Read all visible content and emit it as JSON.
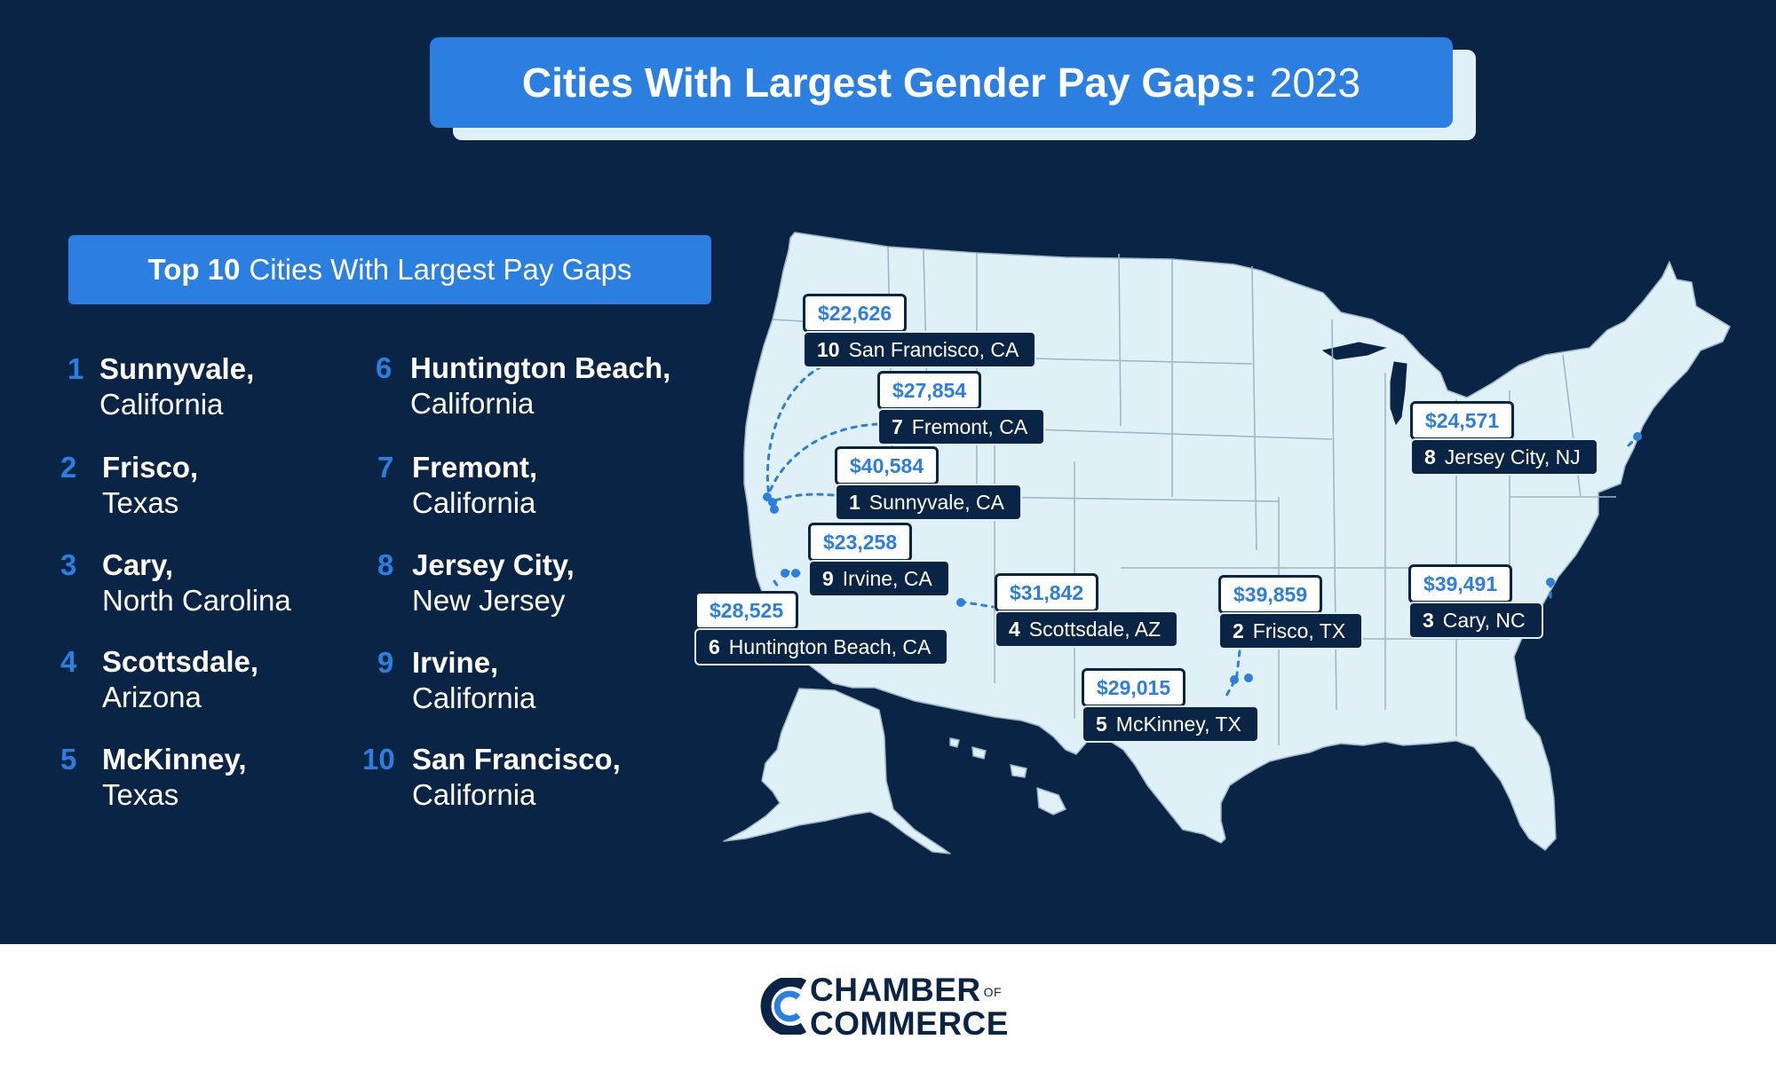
{
  "title": {
    "bold": "Cities With Largest Gender Pay Gaps:",
    "year": "2023"
  },
  "subheading": {
    "bold": "Top 10",
    "text": "Cities With Largest Pay Gaps"
  },
  "rank_list": [
    {
      "rank": "1",
      "city": "Sunnyvale,",
      "state": "California"
    },
    {
      "rank": "2",
      "city": "Frisco,",
      "state": "Texas"
    },
    {
      "rank": "3",
      "city": "Cary,",
      "state": "North Carolina"
    },
    {
      "rank": "4",
      "city": "Scottsdale,",
      "state": "Arizona"
    },
    {
      "rank": "5",
      "city": "McKinney,",
      "state": "Texas"
    },
    {
      "rank": "6",
      "city": "Huntington Beach,",
      "state": "California"
    },
    {
      "rank": "7",
      "city": "Fremont,",
      "state": "California"
    },
    {
      "rank": "8",
      "city": "Jersey City,",
      "state": "New Jersey"
    },
    {
      "rank": "9",
      "city": "Irvine,",
      "state": "California"
    },
    {
      "rank": "10",
      "city": "San Francisco,",
      "state": "California"
    }
  ],
  "map_labels": [
    {
      "amount": "$22,626",
      "rank": "10",
      "name": "San Francisco, CA"
    },
    {
      "amount": "$27,854",
      "rank": "7",
      "name": "Fremont, CA"
    },
    {
      "amount": "$40,584",
      "rank": "1",
      "name": "Sunnyvale, CA"
    },
    {
      "amount": "$23,258",
      "rank": "9",
      "name": "Irvine, CA"
    },
    {
      "amount": "$28,525",
      "rank": "6",
      "name": "Huntington Beach, CA"
    },
    {
      "amount": "$31,842",
      "rank": "4",
      "name": "Scottsdale, AZ"
    },
    {
      "amount": "$39,859",
      "rank": "2",
      "name": "Frisco, TX"
    },
    {
      "amount": "$29,015",
      "rank": "5",
      "name": "McKinney, TX"
    },
    {
      "amount": "$24,571",
      "rank": "8",
      "name": "Jersey City, NJ"
    },
    {
      "amount": "$39,491",
      "rank": "3",
      "name": "Cary, NC"
    }
  ],
  "colors": {
    "navy": "#0a2446",
    "accent": "#2a7fe0",
    "map_fill": "#dff0f6"
  },
  "logo": {
    "line1": "CHAMBER",
    "of": "OF",
    "line2": "COMMERCE"
  }
}
